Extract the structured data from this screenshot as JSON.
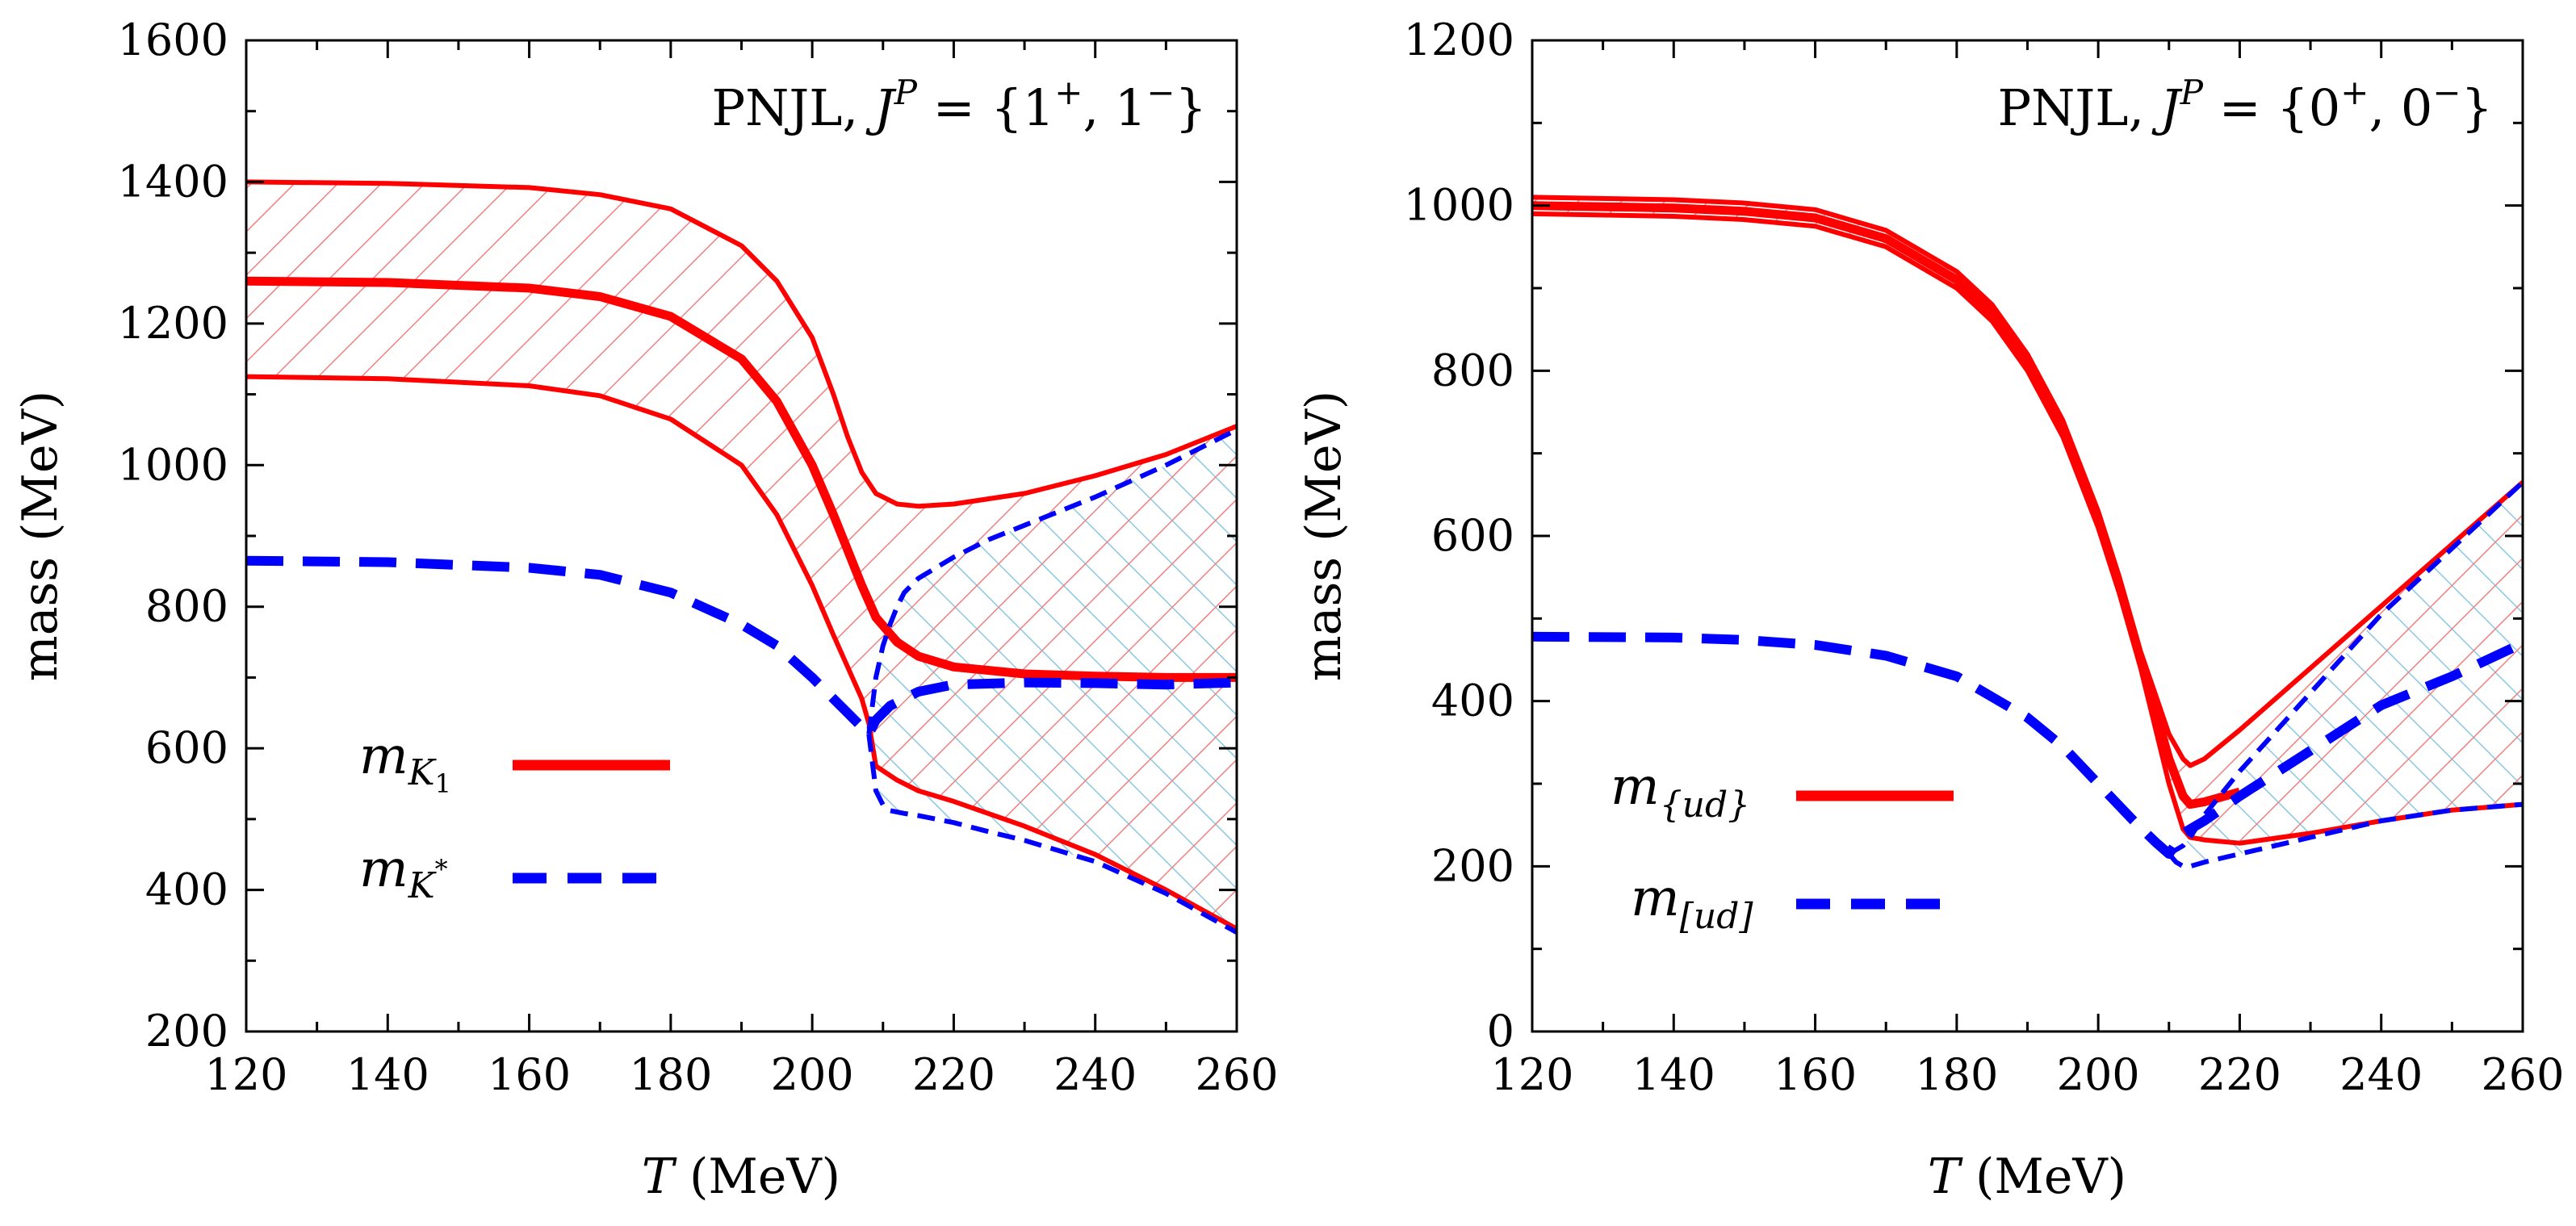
{
  "chart_data": [
    {
      "type": "line",
      "annotation": "PNJL, J^P = {1^+, 1^-}",
      "annotation_parts": {
        "prefix": "PNJL, ",
        "J": "J",
        "P": "P",
        "eq": " = {1",
        "sup1": "+",
        "mid": ", 1",
        "sup2": "−",
        "close": "}"
      },
      "xlabel": "T (MeV)",
      "xlabel_parts": {
        "var": "T",
        "unit": " (MeV)"
      },
      "ylabel": "mass (MeV)",
      "xlim": [
        120,
        260
      ],
      "ylim": [
        200,
        1600
      ],
      "xticks": [
        120,
        140,
        160,
        180,
        200,
        220,
        240,
        260
      ],
      "yticks": [
        200,
        400,
        600,
        800,
        1000,
        1200,
        1400,
        1600
      ],
      "legend_placement": "lower-left",
      "legend": [
        {
          "label": "m_{K_1}",
          "main": "m",
          "sub": "K",
          "subsub": "1",
          "color": "#ff0000",
          "style": "solid"
        },
        {
          "label": "m_{K^*}",
          "main": "m",
          "sub": "K",
          "subsup": "*",
          "color": "#0000ff",
          "style": "dashed"
        }
      ],
      "series": [
        {
          "name": "m_{K_1}",
          "color": "#ff0000",
          "role": "central",
          "x": [
            120,
            140,
            160,
            170,
            180,
            190,
            195,
            200,
            203,
            205,
            207,
            209,
            212,
            215,
            220,
            230,
            240,
            250,
            260
          ],
          "y": [
            1260,
            1258,
            1250,
            1238,
            1210,
            1150,
            1090,
            1000,
            930,
            880,
            830,
            785,
            750,
            730,
            715,
            705,
            702,
            700,
            700
          ]
        },
        {
          "name": "m_{K_1} upper",
          "color": "#ff0000",
          "role": "band-upper",
          "x": [
            120,
            140,
            160,
            170,
            180,
            190,
            195,
            200,
            203,
            205,
            207,
            209,
            212,
            215,
            220,
            230,
            240,
            250,
            260
          ],
          "y": [
            1400,
            1398,
            1392,
            1382,
            1362,
            1310,
            1260,
            1180,
            1100,
            1040,
            990,
            960,
            945,
            942,
            945,
            960,
            985,
            1015,
            1055
          ]
        },
        {
          "name": "m_{K_1} lower",
          "color": "#ff0000",
          "role": "band-lower",
          "x": [
            120,
            140,
            160,
            170,
            180,
            190,
            195,
            200,
            203,
            205,
            207,
            208,
            209,
            212,
            215,
            220,
            230,
            240,
            250,
            260
          ],
          "y": [
            1125,
            1122,
            1112,
            1098,
            1065,
            1000,
            930,
            830,
            760,
            715,
            670,
            635,
            575,
            555,
            540,
            525,
            490,
            450,
            400,
            345
          ]
        },
        {
          "name": "m_{K^*}",
          "color": "#0000ff",
          "role": "central",
          "x": [
            120,
            140,
            160,
            170,
            180,
            190,
            195,
            200,
            203,
            205,
            207,
            208,
            209,
            211,
            213,
            215,
            220,
            230,
            240,
            250,
            260
          ],
          "y": [
            865,
            863,
            855,
            845,
            820,
            775,
            745,
            700,
            670,
            650,
            630,
            620,
            640,
            660,
            670,
            680,
            690,
            693,
            692,
            690,
            693
          ]
        },
        {
          "name": "m_{K^*} upper",
          "color": "#0000ff",
          "role": "band-upper",
          "x": [
            208,
            209,
            210,
            211,
            212,
            213,
            215,
            220,
            225,
            230,
            240,
            250,
            260
          ],
          "y": [
            620,
            700,
            745,
            775,
            800,
            820,
            840,
            870,
            895,
            915,
            955,
            1000,
            1050
          ]
        },
        {
          "name": "m_{K^*} lower",
          "color": "#0000ff",
          "role": "band-lower",
          "x": [
            208,
            209,
            210,
            211,
            212,
            213,
            215,
            220,
            225,
            230,
            240,
            250,
            260
          ],
          "y": [
            620,
            540,
            520,
            512,
            510,
            508,
            505,
            495,
            482,
            470,
            440,
            395,
            340
          ]
        }
      ]
    },
    {
      "type": "line",
      "annotation": "PNJL, J^P = {0^+, 0^-}",
      "annotation_parts": {
        "prefix": "PNJL, ",
        "J": "J",
        "P": "P",
        "eq": " = {0",
        "sup1": "+",
        "mid": ", 0",
        "sup2": "−",
        "close": "}"
      },
      "xlabel": "T (MeV)",
      "xlabel_parts": {
        "var": "T",
        "unit": " (MeV)"
      },
      "ylabel": "mass (MeV)",
      "xlim": [
        120,
        260
      ],
      "ylim": [
        0,
        1200
      ],
      "xticks": [
        120,
        140,
        160,
        180,
        200,
        220,
        240,
        260
      ],
      "yticks": [
        0,
        200,
        400,
        600,
        800,
        1000,
        1200
      ],
      "legend_placement": "lower-left",
      "legend": [
        {
          "label": "m_{ud}",
          "main": "m",
          "sub": "{ud}",
          "color": "#ff0000",
          "style": "solid"
        },
        {
          "label": "m_[ud]",
          "main": "m",
          "sub": "[ud]",
          "color": "#0000ff",
          "style": "dashed"
        }
      ],
      "series": [
        {
          "name": "m_{ud} upper",
          "color": "#ff0000",
          "role": "band-upper",
          "x": [
            120,
            140,
            150,
            160,
            170,
            180,
            185,
            190,
            195,
            200,
            203,
            206,
            208,
            210,
            212,
            213,
            215,
            220,
            230,
            240,
            250,
            260
          ],
          "y": [
            1010,
            1007,
            1003,
            995,
            970,
            920,
            880,
            820,
            740,
            630,
            550,
            460,
            410,
            360,
            330,
            322,
            330,
            365,
            440,
            515,
            590,
            665
          ]
        },
        {
          "name": "m_{ud}",
          "color": "#ff0000",
          "role": "central",
          "x": [
            120,
            140,
            150,
            160,
            170,
            180,
            185,
            190,
            195,
            200,
            203,
            206,
            208,
            210,
            212,
            213,
            215,
            220
          ],
          "y": [
            1000,
            997,
            993,
            985,
            960,
            910,
            870,
            810,
            730,
            620,
            540,
            450,
            390,
            330,
            285,
            275,
            278,
            290
          ]
        },
        {
          "name": "m_{ud} lower",
          "color": "#ff0000",
          "role": "band-lower",
          "x": [
            120,
            140,
            150,
            160,
            170,
            180,
            185,
            190,
            195,
            200,
            203,
            206,
            208,
            210,
            212,
            213,
            215,
            220,
            230,
            240,
            250,
            260
          ],
          "y": [
            990,
            987,
            983,
            975,
            950,
            900,
            860,
            800,
            720,
            610,
            530,
            440,
            370,
            300,
            245,
            235,
            232,
            228,
            240,
            255,
            268,
            275
          ]
        },
        {
          "name": "m_[ud]",
          "color": "#0000ff",
          "role": "central",
          "x": [
            120,
            140,
            150,
            160,
            170,
            180,
            190,
            195,
            200,
            205,
            208,
            210,
            212,
            215,
            220,
            230,
            240,
            250,
            260
          ],
          "y": [
            478,
            477,
            474,
            468,
            455,
            430,
            380,
            345,
            300,
            255,
            230,
            215,
            240,
            255,
            285,
            340,
            395,
            430,
            470
          ]
        },
        {
          "name": "m_[ud] upper",
          "color": "#0000ff",
          "role": "band-upper",
          "x": [
            210,
            212,
            213,
            215,
            220,
            230,
            240,
            250,
            260
          ],
          "y": [
            215,
            225,
            235,
            262,
            315,
            410,
            505,
            585,
            665
          ]
        },
        {
          "name": "m_[ud] lower",
          "color": "#0000ff",
          "role": "band-lower",
          "x": [
            210,
            211,
            212,
            213,
            215,
            220,
            230,
            240,
            250,
            260
          ],
          "y": [
            215,
            205,
            200,
            200,
            205,
            215,
            235,
            255,
            268,
            275
          ]
        }
      ]
    }
  ]
}
